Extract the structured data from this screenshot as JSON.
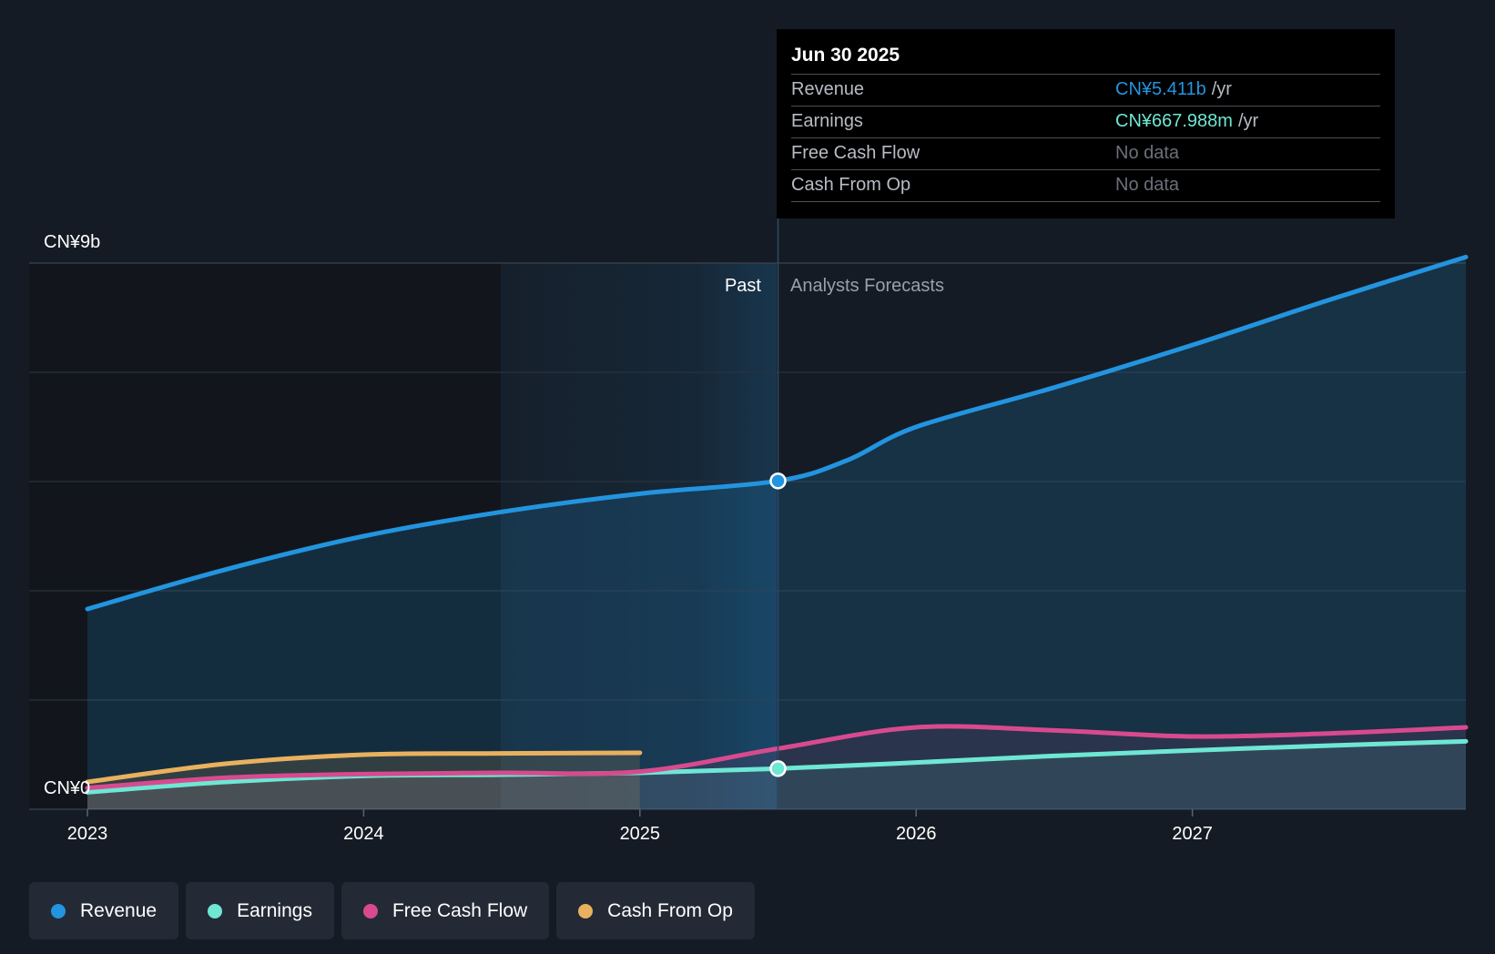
{
  "tooltip": {
    "date": "Jun 30 2025",
    "rows": [
      {
        "label": "Revenue",
        "value": "CN¥5.411b",
        "unit": "/yr",
        "color": "#2394df"
      },
      {
        "label": "Earnings",
        "value": "CN¥667.988m",
        "unit": "/yr",
        "color": "#6ee7d4"
      },
      {
        "label": "Free Cash Flow",
        "value": "No data",
        "unit": "",
        "color": "#6b7079"
      },
      {
        "label": "Cash From Op",
        "value": "No data",
        "unit": "",
        "color": "#6b7079"
      }
    ]
  },
  "legend": [
    {
      "label": "Revenue",
      "color": "#2394df"
    },
    {
      "label": "Earnings",
      "color": "#6ee7d4"
    },
    {
      "label": "Free Cash Flow",
      "color": "#d84a8f"
    },
    {
      "label": "Cash From Op",
      "color": "#e9b15f"
    }
  ],
  "chart_data": {
    "type": "area",
    "y_top_label": "CN¥9b",
    "y_bottom_label": "CN¥0",
    "ylim": [
      0,
      9
    ],
    "y_unit": "CN¥ billions",
    "x_ticks": [
      "2023",
      "2024",
      "2025",
      "2026",
      "2027"
    ],
    "xlim": [
      2023.0,
      2027.99
    ],
    "divider_x": 2025.5,
    "past_label": "Past",
    "forecast_label": "Analysts Forecasts",
    "grid": true,
    "series": [
      {
        "name": "Revenue",
        "color": "#2394df",
        "points": [
          [
            2023.0,
            3.3
          ],
          [
            2023.5,
            3.95
          ],
          [
            2024.0,
            4.5
          ],
          [
            2024.5,
            4.9
          ],
          [
            2025.0,
            5.2
          ],
          [
            2025.5,
            5.41
          ],
          [
            2025.75,
            5.75
          ],
          [
            2026.0,
            6.3
          ],
          [
            2026.5,
            6.95
          ],
          [
            2027.0,
            7.65
          ],
          [
            2027.5,
            8.4
          ],
          [
            2027.99,
            9.1
          ]
        ]
      },
      {
        "name": "Earnings",
        "color": "#6ee7d4",
        "points": [
          [
            2023.0,
            0.28
          ],
          [
            2023.5,
            0.45
          ],
          [
            2024.0,
            0.55
          ],
          [
            2024.5,
            0.57
          ],
          [
            2025.0,
            0.6
          ],
          [
            2025.5,
            0.67
          ],
          [
            2026.0,
            0.77
          ],
          [
            2026.5,
            0.88
          ],
          [
            2027.0,
            0.97
          ],
          [
            2027.5,
            1.05
          ],
          [
            2027.99,
            1.12
          ]
        ]
      },
      {
        "name": "Free Cash Flow",
        "color": "#d84a8f",
        "points": [
          [
            2023.0,
            0.35
          ],
          [
            2023.5,
            0.52
          ],
          [
            2024.0,
            0.58
          ],
          [
            2024.5,
            0.6
          ],
          [
            2025.0,
            0.62
          ],
          [
            2025.5,
            1.0
          ],
          [
            2026.0,
            1.35
          ],
          [
            2026.5,
            1.3
          ],
          [
            2027.0,
            1.2
          ],
          [
            2027.5,
            1.25
          ],
          [
            2027.99,
            1.35
          ]
        ]
      },
      {
        "name": "Cash From Op",
        "color": "#e9b15f",
        "points": [
          [
            2023.0,
            0.45
          ],
          [
            2023.5,
            0.75
          ],
          [
            2024.0,
            0.9
          ],
          [
            2024.5,
            0.92
          ],
          [
            2025.0,
            0.93
          ]
        ]
      }
    ],
    "highlighted_points": [
      {
        "series": "Revenue",
        "x": 2025.5,
        "y": 5.41
      },
      {
        "series": "Earnings",
        "x": 2025.5,
        "y": 0.67
      }
    ]
  }
}
